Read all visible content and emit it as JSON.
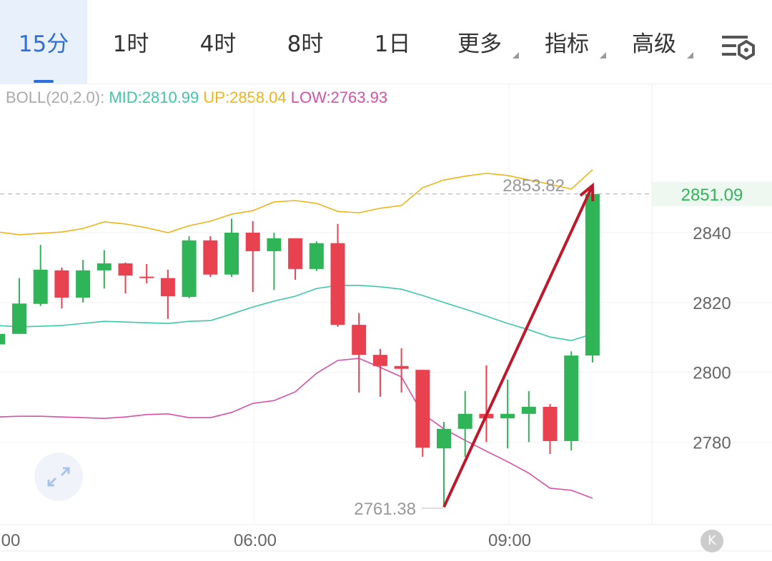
{
  "tabs": [
    {
      "label": "15分",
      "active": true
    },
    {
      "label": "1时"
    },
    {
      "label": "4时"
    },
    {
      "label": "8时"
    },
    {
      "label": "1日"
    },
    {
      "label": "更多",
      "dropdown": true
    },
    {
      "label": "指标",
      "dropdown": true
    },
    {
      "label": "高级",
      "dropdown": true
    }
  ],
  "settings_icon": "chart-settings-icon",
  "boll": {
    "name": "BOLL(20,2.0):",
    "mid": "MID:2810.99",
    "up": "UP:2858.04",
    "low": "LOW:2763.93",
    "colors": {
      "name": "#aaaaaa",
      "mid": "#3cc8a8",
      "up": "#f0b419",
      "low": "#d94fa6"
    }
  },
  "colors": {
    "up": "#2fb457",
    "down": "#e8414f",
    "arrow": "#c0182a",
    "accent": "#2a6fdb"
  },
  "chart_data": {
    "type": "candlestick",
    "x": [
      "03:00",
      "03:15",
      "03:30",
      "03:45",
      "04:00",
      "04:15",
      "04:30",
      "04:45",
      "05:00",
      "05:15",
      "05:30",
      "05:45",
      "06:00",
      "06:15",
      "06:30",
      "06:45",
      "07:00",
      "07:15",
      "07:30",
      "07:45",
      "08:00",
      "08:15",
      "08:30",
      "08:45",
      "09:00",
      "09:15",
      "09:30",
      "09:45",
      "10:00"
    ],
    "x_tick_labels": [
      "00",
      "06:00",
      "09:00"
    ],
    "y_tick_labels": [
      "2840",
      "2820",
      "2800",
      "2780"
    ],
    "ylim": [
      2755,
      2870
    ],
    "ohlc": [
      [
        2808,
        2812.5,
        2806,
        2811
      ],
      [
        2811,
        2827,
        2811,
        2819.7
      ],
      [
        2819.6,
        2836.5,
        2819,
        2829.4
      ],
      [
        2829.2,
        2830,
        2818.3,
        2821.4
      ],
      [
        2821.4,
        2832.2,
        2820,
        2829.2
      ],
      [
        2829.2,
        2835,
        2824,
        2831.2
      ],
      [
        2831.2,
        2831.5,
        2822.6,
        2827.7
      ],
      [
        2827.4,
        2831,
        2825.5,
        2827
      ],
      [
        2827,
        2829.4,
        2815.3,
        2821.8
      ],
      [
        2821.6,
        2839,
        2821.2,
        2837.8
      ],
      [
        2837.8,
        2839,
        2827.3,
        2828
      ],
      [
        2828,
        2844,
        2827.3,
        2840
      ],
      [
        2840,
        2843.3,
        2823,
        2834.7
      ],
      [
        2834.7,
        2840,
        2823.6,
        2838.4
      ],
      [
        2838.4,
        2838.4,
        2826.5,
        2829.6
      ],
      [
        2829.6,
        2837.5,
        2829,
        2837
      ],
      [
        2837,
        2842.5,
        2813,
        2813.6
      ],
      [
        2813.6,
        2817,
        2794.2,
        2805
      ],
      [
        2805,
        2806.7,
        2793,
        2801.8
      ],
      [
        2801.8,
        2806.9,
        2794.2,
        2801
      ],
      [
        2800.7,
        2800.7,
        2775.8,
        2778.4
      ],
      [
        2778.2,
        2785.8,
        2761.38,
        2783.8
      ],
      [
        2783.8,
        2794.6,
        2775.8,
        2788.1
      ],
      [
        2788.1,
        2802,
        2780,
        2786.8
      ],
      [
        2786.8,
        2797.9,
        2778.2,
        2788.1
      ],
      [
        2788.1,
        2794.6,
        2780,
        2790.1
      ],
      [
        2790.1,
        2790.9,
        2776.6,
        2780.3
      ],
      [
        2780.3,
        2806,
        2777.6,
        2804.8
      ],
      [
        2804.8,
        2853.82,
        2802.8,
        2851.09
      ]
    ],
    "boll_up": [
      2840.2,
      2839.4,
      2839.8,
      2840.2,
      2841.2,
      2843.1,
      2842.5,
      2841.4,
      2840,
      2842,
      2843.3,
      2845.3,
      2846.3,
      2848.8,
      2849.2,
      2848.4,
      2846.1,
      2845.7,
      2847,
      2847.8,
      2852.9,
      2855.1,
      2856.2,
      2857,
      2856.4,
      2855.1,
      2853.9,
      2852.5,
      2858.04
    ],
    "boll_mid": [
      2813.4,
      2813,
      2813.2,
      2813.4,
      2814,
      2814.6,
      2814.4,
      2814.2,
      2814,
      2814.6,
      2814.8,
      2816.7,
      2818.7,
      2820.4,
      2821.8,
      2824,
      2824.9,
      2824.9,
      2824.5,
      2823.8,
      2822,
      2820,
      2818.1,
      2816.1,
      2814,
      2812.2,
      2810.1,
      2809.1,
      2810.99
    ],
    "boll_low": [
      2787.2,
      2787.4,
      2787.4,
      2787.2,
      2787,
      2786.8,
      2787.2,
      2787.9,
      2788.1,
      2787,
      2787,
      2788.5,
      2791.1,
      2791.9,
      2794.4,
      2799.7,
      2803.4,
      2804,
      2801.4,
      2798.7,
      2788.1,
      2783.8,
      2780.5,
      2777.4,
      2774.4,
      2771.1,
      2766.8,
      2766.2,
      2763.93
    ],
    "last_price": "2851.09",
    "high_label": "2853.82",
    "low_label": "2761.38",
    "annotation": {
      "type": "arrow",
      "from": [
        "08:15",
        2761.38
      ],
      "to": [
        "10:00",
        2853.5
      ]
    }
  }
}
